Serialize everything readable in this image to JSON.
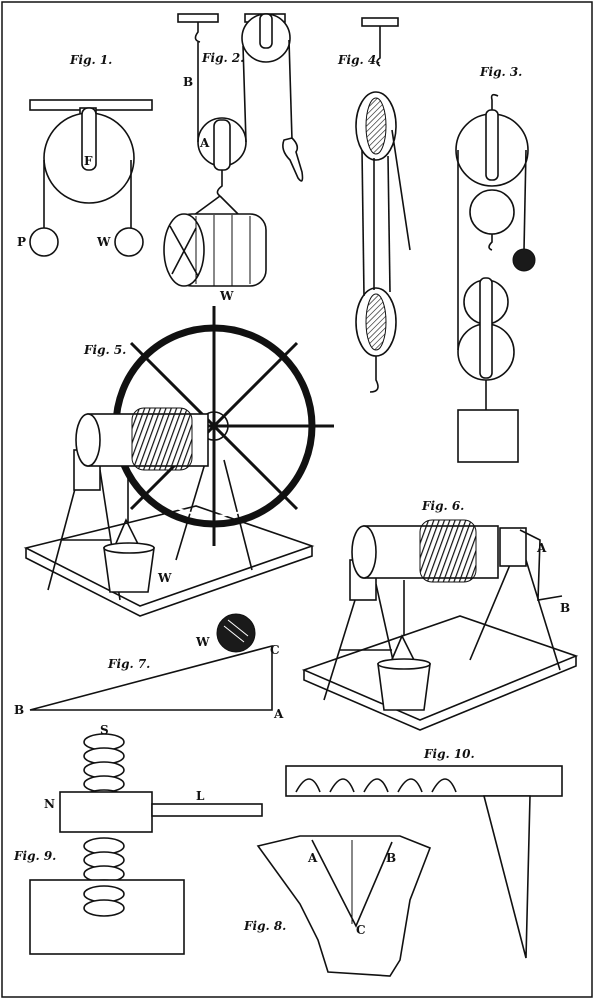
{
  "figures": {
    "fig1": {
      "title": "Fig. 1.",
      "labels": {
        "F": "F",
        "P": "P",
        "W": "W"
      }
    },
    "fig2": {
      "title": "Fig. 2.",
      "labels": {
        "A": "A",
        "B": "B",
        "W": "W"
      }
    },
    "fig3": {
      "title": "Fig. 3."
    },
    "fig4": {
      "title": "Fig. 4."
    },
    "fig5": {
      "title": "Fig. 5.",
      "labels": {
        "W": "W"
      }
    },
    "fig6": {
      "title": "Fig. 6.",
      "labels": {
        "A": "A",
        "B": "B"
      }
    },
    "fig7": {
      "title": "Fig. 7.",
      "labels": {
        "W": "W",
        "C": "C",
        "B": "B",
        "A": "A"
      }
    },
    "fig8": {
      "title": "Fig. 8.",
      "labels": {
        "A": "A",
        "B": "B",
        "C": "C"
      }
    },
    "fig9": {
      "title": "Fig. 9.",
      "labels": {
        "S": "S",
        "N": "N",
        "L": "L"
      }
    },
    "fig10": {
      "title": "Fig. 10."
    }
  },
  "colors": {
    "ink": "#111111",
    "paper": "#ffffff"
  }
}
